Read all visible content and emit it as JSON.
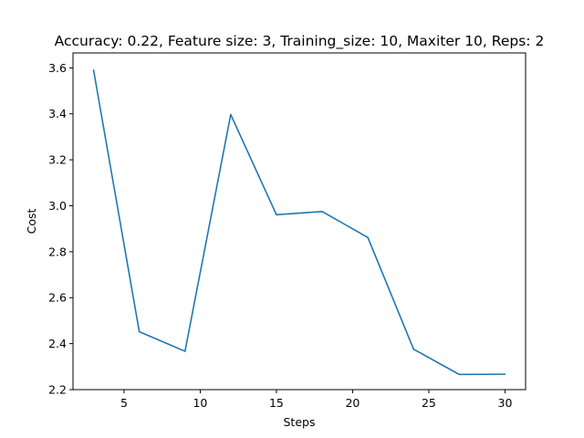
{
  "chart_data": {
    "type": "line",
    "title": "Accuracy: 0.22, Feature size: 3, Training_size: 10, Maxiter 10, Reps: 2",
    "xlabel": "Steps",
    "ylabel": "Cost",
    "xlim": [
      1.65,
      31.35
    ],
    "ylim": [
      2.2,
      3.665
    ],
    "xticks": [
      5,
      10,
      15,
      20,
      25,
      30
    ],
    "xtick_labels": [
      "5",
      "10",
      "15",
      "20",
      "25",
      "30"
    ],
    "yticks": [
      2.2,
      2.4,
      2.6,
      2.8,
      3.0,
      3.2,
      3.4,
      3.6
    ],
    "ytick_labels": [
      "2.2",
      "2.4",
      "2.6",
      "2.8",
      "3.0",
      "3.2",
      "3.4",
      "3.6"
    ],
    "grid": false,
    "series": [
      {
        "color": "#1f77b4",
        "x": [
          3,
          6,
          9,
          12,
          15,
          18,
          21,
          24,
          27,
          30
        ],
        "y": [
          3.59,
          2.452,
          2.367,
          3.397,
          2.961,
          2.975,
          2.862,
          2.376,
          2.266,
          2.267
        ]
      }
    ]
  }
}
